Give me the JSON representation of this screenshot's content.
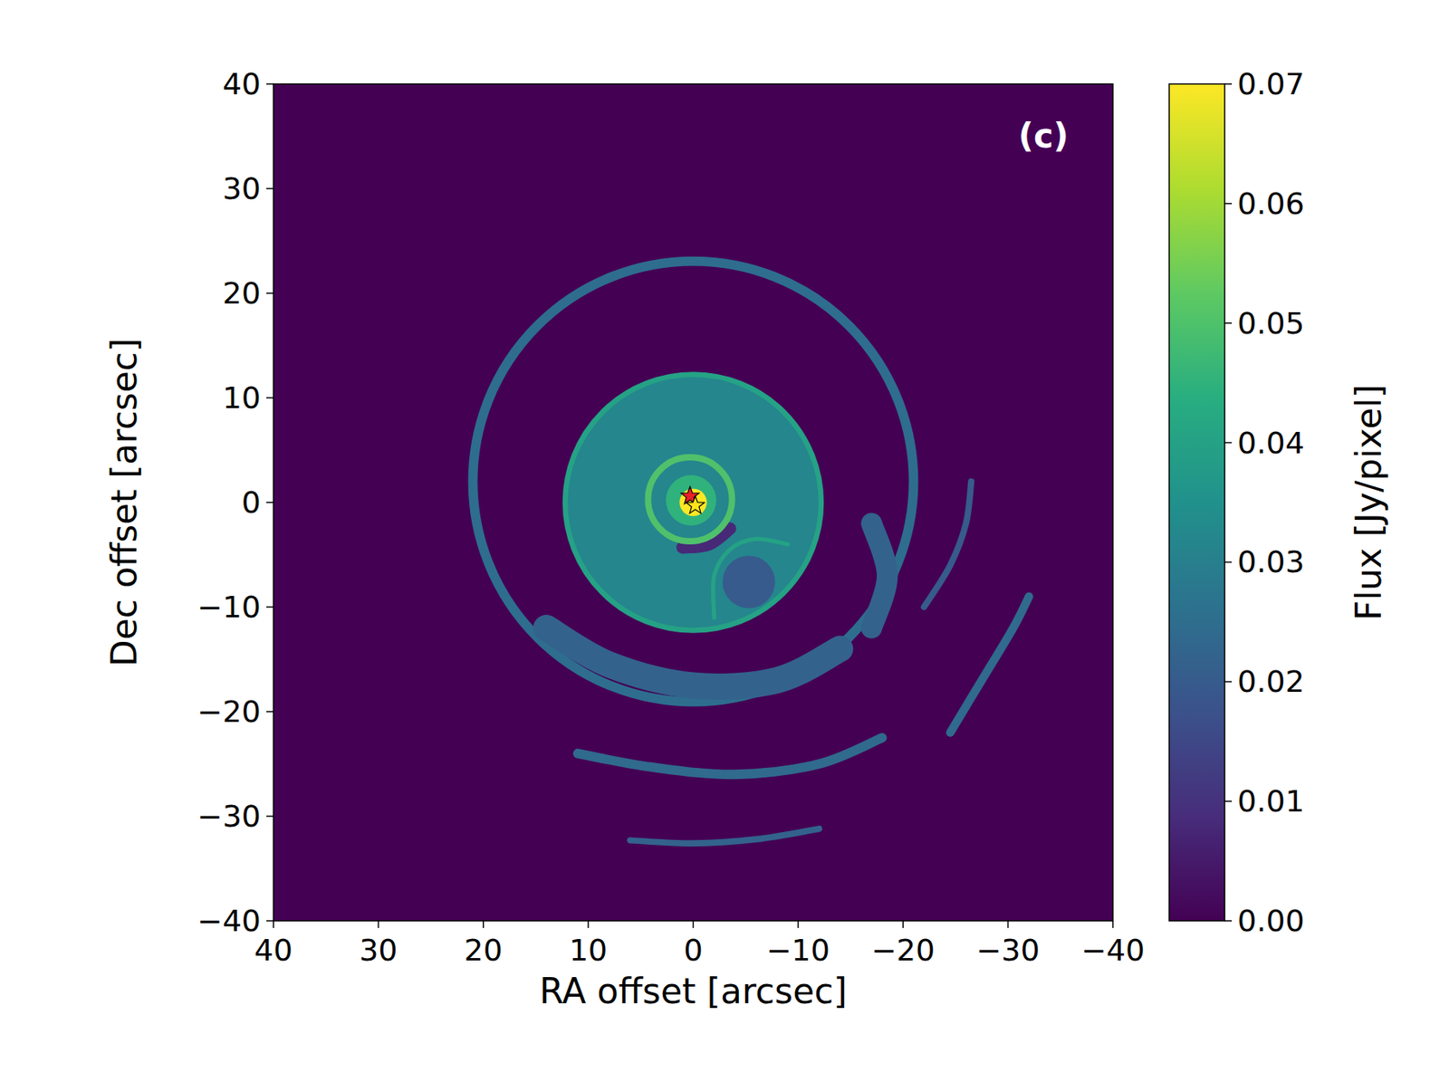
{
  "chart_data": {
    "type": "image",
    "annotations": [
      "(c)"
    ],
    "x_label": "RA offset [arcsec]",
    "y_label": "Dec offset [arcsec]",
    "xlim": [
      40,
      -40
    ],
    "ylim": [
      -40,
      40
    ],
    "xticks": [
      40,
      30,
      20,
      10,
      0,
      {
        "value": -10,
        "label": "−10"
      },
      {
        "value": -20,
        "label": "−20"
      },
      {
        "value": -30,
        "label": "−30"
      },
      {
        "value": -40,
        "label": "−40"
      }
    ],
    "yticks": [
      {
        "value": -40,
        "label": "−40"
      },
      {
        "value": -30,
        "label": "−30"
      },
      {
        "value": -20,
        "label": "−20"
      },
      {
        "value": -10,
        "label": "−10"
      },
      0,
      10,
      20,
      30,
      40
    ],
    "background": 0,
    "colorbar": {
      "label": "Flux [Jy/pixel]",
      "range": [
        0,
        0.07
      ],
      "ticks": [
        {
          "value": 0,
          "label": "0.00"
        },
        0.01,
        0.02,
        0.03,
        0.04,
        0.05,
        0.06,
        0.07
      ]
    },
    "features": [
      {
        "shape": "arc",
        "points": [
          [
            6,
            -32.3
          ],
          [
            0,
            -32.6
          ],
          [
            -6,
            -32.2
          ],
          [
            -12,
            -31.2
          ]
        ],
        "width": 0.6,
        "flux": 0.022
      },
      {
        "shape": "arc",
        "points": [
          [
            11,
            -24
          ],
          [
            4,
            -25.3
          ],
          [
            -4,
            -26
          ],
          [
            -12,
            -25
          ],
          [
            -18,
            -22.5
          ]
        ],
        "width": 0.9,
        "flux": 0.024
      },
      {
        "shape": "arc",
        "points": [
          [
            -24.5,
            -22
          ],
          [
            -27.5,
            -17
          ],
          [
            -30.5,
            -12
          ],
          [
            -32,
            -9
          ]
        ],
        "width": 0.8,
        "flux": 0.024
      },
      {
        "shape": "arc",
        "points": [
          [
            -26.5,
            2
          ],
          [
            -26,
            -2
          ],
          [
            -24.5,
            -6
          ],
          [
            -22,
            -10
          ]
        ],
        "width": 0.6,
        "flux": 0.02
      },
      {
        "shape": "ring",
        "center": [
          0,
          2
        ],
        "radius": 21,
        "width": 0.9,
        "flux": 0.025
      },
      {
        "shape": "arc",
        "points": [
          [
            14,
            -12
          ],
          [
            8,
            -15.5
          ],
          [
            0,
            -17.5
          ],
          [
            -8,
            -17
          ],
          [
            -14,
            -14
          ]
        ],
        "width": 2.5,
        "flux": 0.022
      },
      {
        "shape": "arc",
        "points": [
          [
            -17,
            -2
          ],
          [
            -18.5,
            -7
          ],
          [
            -17,
            -12
          ]
        ],
        "width": 2,
        "flux": 0.022
      },
      {
        "shape": "disk",
        "center": [
          0,
          0
        ],
        "radius": 12.2,
        "flux": 0.032
      },
      {
        "shape": "ring",
        "center": [
          0,
          0
        ],
        "radius": 12.2,
        "width": 0.5,
        "flux": 0.04
      },
      {
        "shape": "disk",
        "center": [
          -5.3,
          -7.6
        ],
        "radius": 2.5,
        "flux": 0.02
      },
      {
        "shape": "arc",
        "points": [
          [
            -2,
            -11
          ],
          [
            -2,
            -7
          ],
          [
            -3.5,
            -4.5
          ],
          [
            -6,
            -3.5
          ],
          [
            -9,
            -4
          ]
        ],
        "width": 0.4,
        "flux": 0.04
      },
      {
        "shape": "arc",
        "points": [
          [
            1,
            -4.3
          ],
          [
            -1.5,
            -4
          ],
          [
            -3.5,
            -2.5
          ]
        ],
        "width": 1.2,
        "flux": 0.008
      },
      {
        "shape": "disk",
        "center": [
          0.2,
          0.2
        ],
        "radius": 2.4,
        "flux": 0.045
      },
      {
        "shape": "ring",
        "center": [
          0.3,
          0.3
        ],
        "radius": 4,
        "width": 0.6,
        "flux": 0.05
      },
      {
        "shape": "disk",
        "center": [
          0,
          0
        ],
        "radius": 1.3,
        "flux": 0.07
      }
    ],
    "stars": [
      {
        "x": 0.3,
        "y": 0.6,
        "color": "#e8202a",
        "marker": "star"
      },
      {
        "x": -0.2,
        "y": -0.3,
        "color": "#ffe419",
        "marker": "star"
      }
    ]
  }
}
